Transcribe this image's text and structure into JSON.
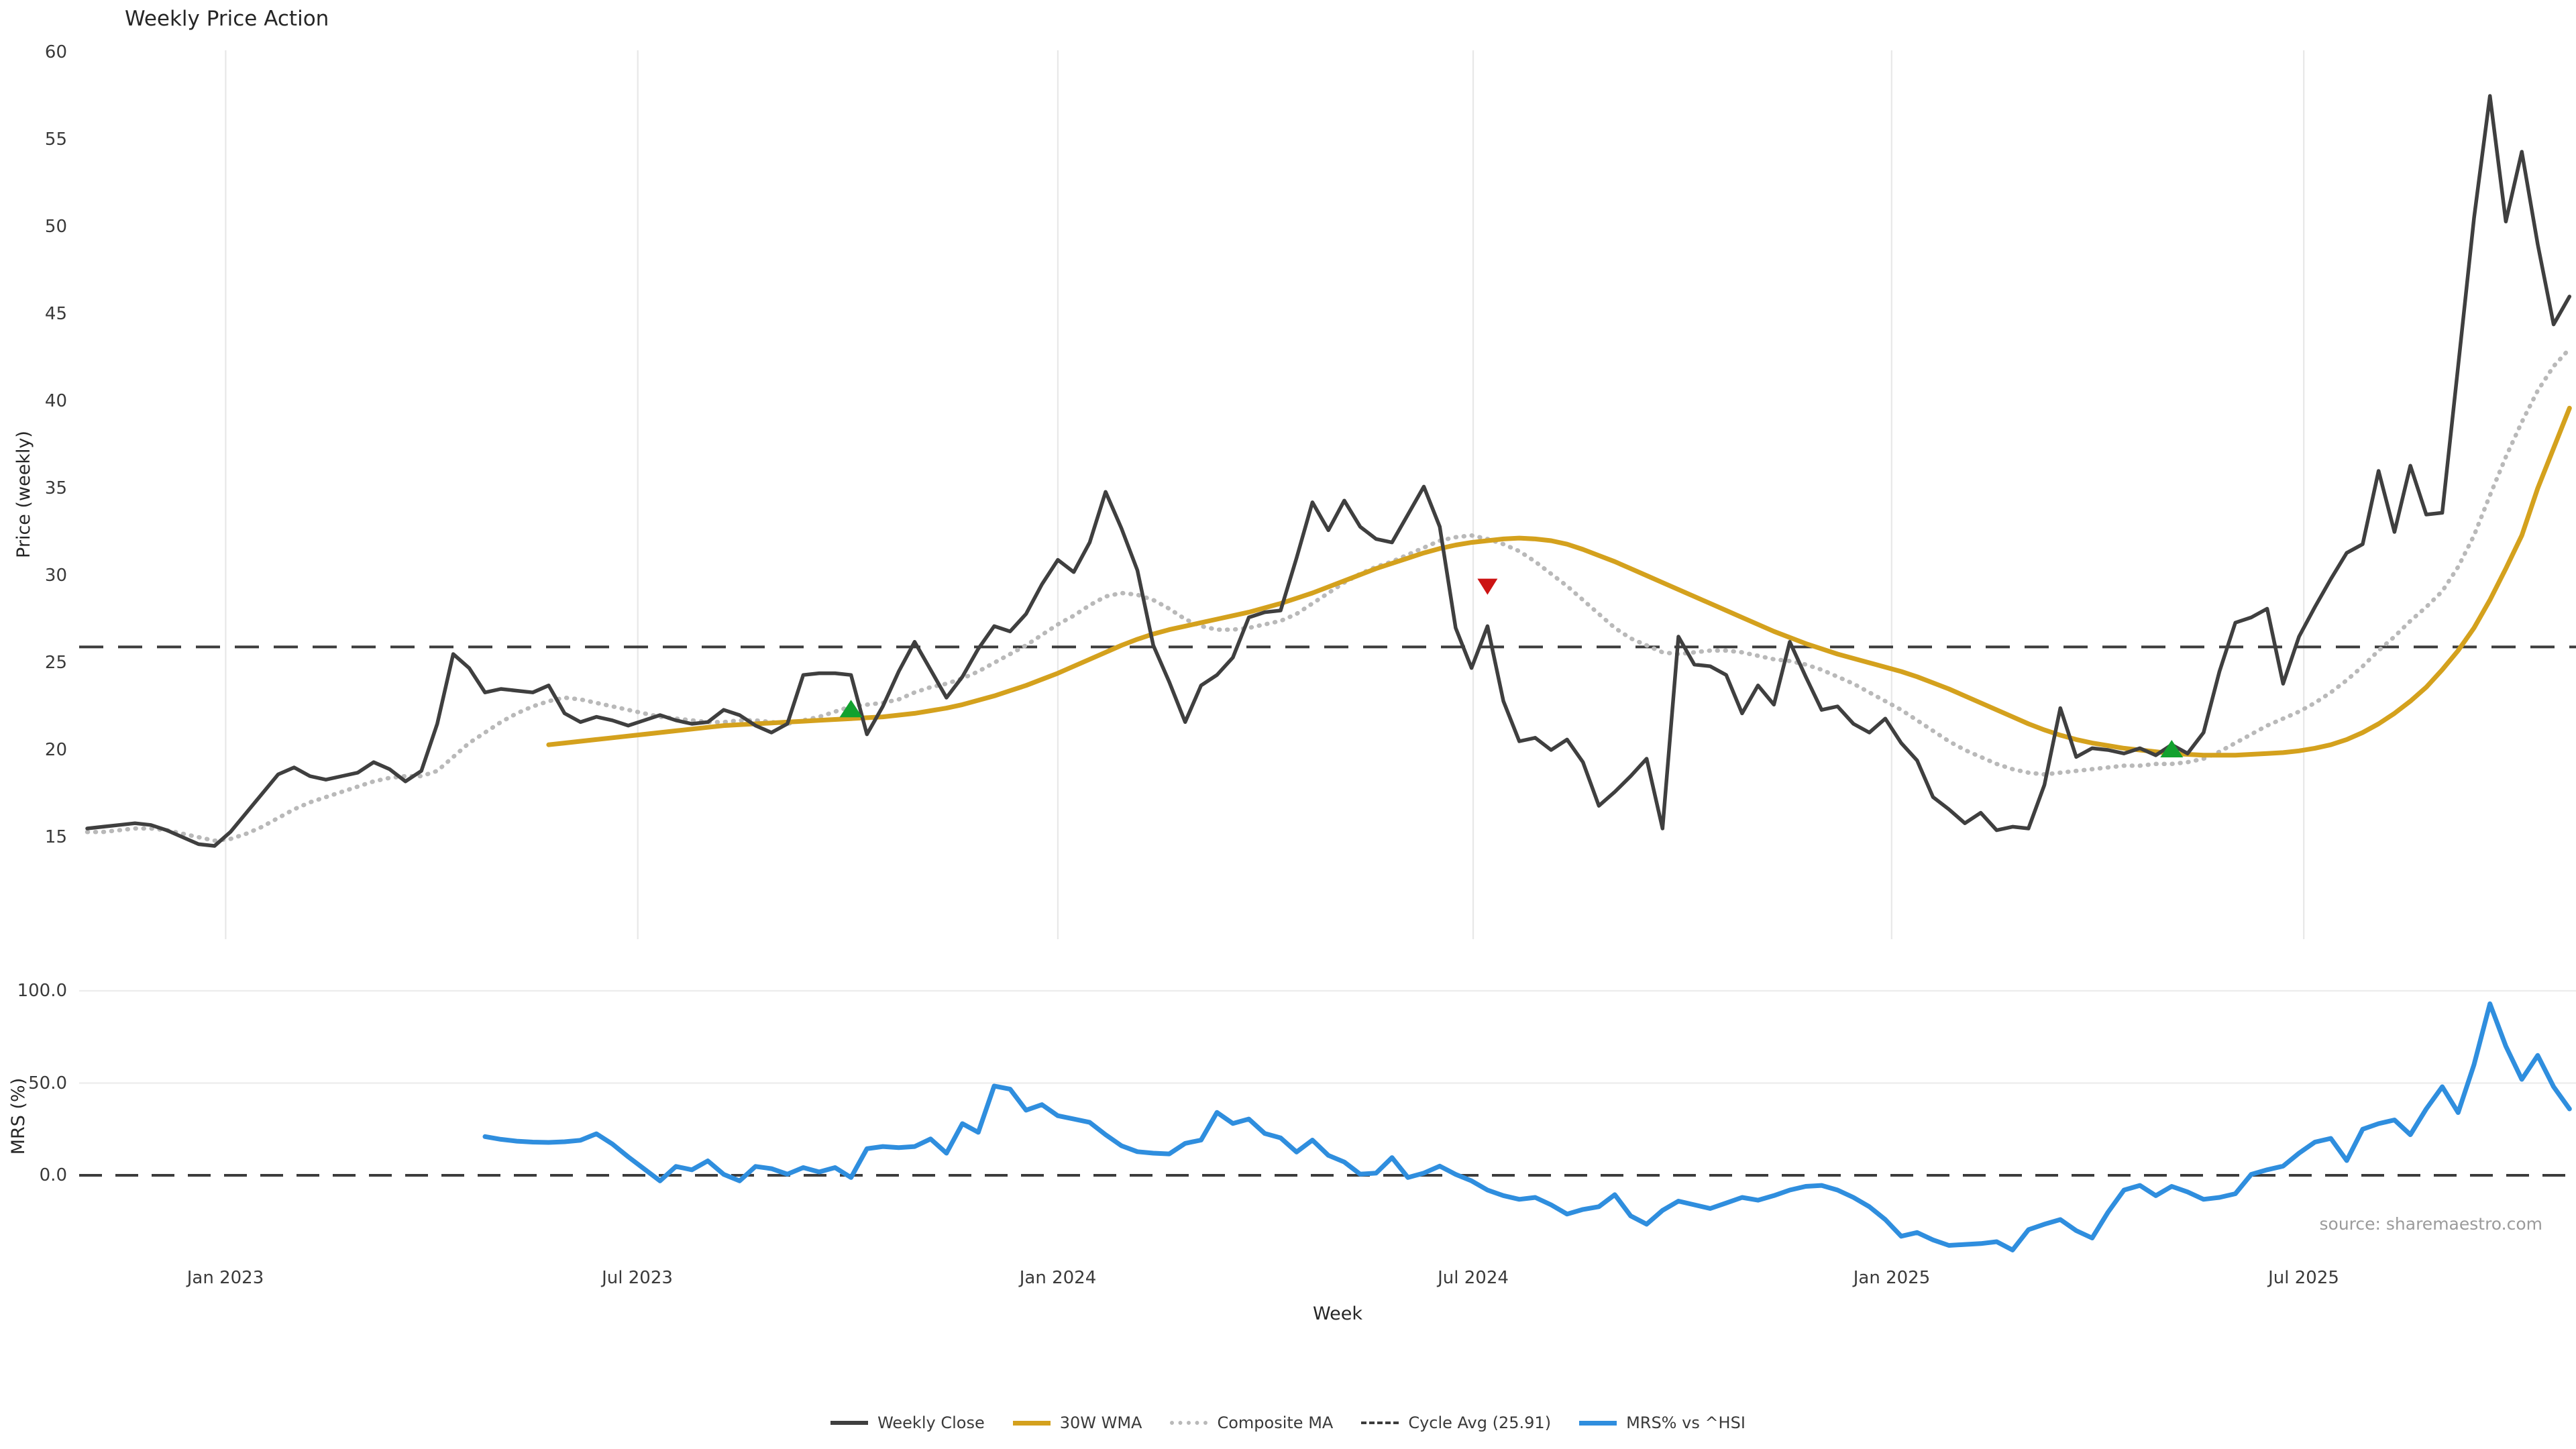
{
  "title": "Weekly Price Action",
  "source_text": "source: sharemaestro.com",
  "colors": {
    "weekly_close": "#3f3f3f",
    "wma_30w": "#d4a11d",
    "composite_ma": "#b9b9b9",
    "cycle_avg": "#3c3c3c",
    "mrs": "#2f8ede",
    "buy_marker": "#12a12e",
    "sell_marker": "#cc1414",
    "grid": "#e8e8e8"
  },
  "legend": [
    {
      "label": "Weekly Close",
      "style": "solid",
      "color": "#3f3f3f"
    },
    {
      "label": "30W WMA",
      "style": "solid",
      "color": "#d4a11d"
    },
    {
      "label": "Composite MA",
      "style": "dotted",
      "color": "#b9b9b9"
    },
    {
      "label": "Cycle Avg (25.91)",
      "style": "dashed",
      "color": "#3c3c3c"
    },
    {
      "label": "MRS% vs ^HSI",
      "style": "solid",
      "color": "#2f8ede"
    }
  ],
  "chart_data": [
    {
      "type": "line",
      "title": "Weekly Price Action",
      "xlabel": "Week",
      "ylabel": "Price (weekly)",
      "grid": "vertical-only",
      "legend_position": "bottom-center",
      "x_tick_labels": [
        "Jan 2023",
        "Jul 2023",
        "Jan 2024",
        "Jul 2024",
        "Jan 2025",
        "Jul 2025"
      ],
      "x_tick_weeks": [
        8.7,
        34.6,
        61,
        87.1,
        113.4,
        139.3
      ],
      "y_ticks": [
        60,
        55,
        50,
        45,
        40,
        35,
        30,
        25,
        20,
        15
      ],
      "ylim": [
        9.2,
        60.2
      ],
      "x_weeks_total": 157,
      "cycle_avg_value": 25.91,
      "series": [
        {
          "name": "Weekly Close",
          "style": "solid",
          "color": "#3f3f3f",
          "start_week": 0,
          "values": [
            15.5,
            15.6,
            15.7,
            15.8,
            15.7,
            15.4,
            15.0,
            14.6,
            14.5,
            15.3,
            16.4,
            17.5,
            18.6,
            19.0,
            18.5,
            18.3,
            18.5,
            18.7,
            19.3,
            18.9,
            18.2,
            18.8,
            21.5,
            25.5,
            24.7,
            23.3,
            23.5,
            23.4,
            23.3,
            23.7,
            22.1,
            21.6,
            21.9,
            21.7,
            21.4,
            21.7,
            22.0,
            21.7,
            21.5,
            21.6,
            22.3,
            22.0,
            21.4,
            21.0,
            21.5,
            24.3,
            24.4,
            24.4,
            24.3,
            20.9,
            22.5,
            24.5,
            26.2,
            24.6,
            23.0,
            24.2,
            25.8,
            27.1,
            26.8,
            27.8,
            29.5,
            30.9,
            30.2,
            31.9,
            34.8,
            32.7,
            30.3,
            26.0,
            23.9,
            21.6,
            23.7,
            24.3,
            25.3,
            27.6,
            27.9,
            28.0,
            31.0,
            34.2,
            32.6,
            34.3,
            32.8,
            32.1,
            31.9,
            33.5,
            35.1,
            32.8,
            27.0,
            24.7,
            27.1,
            22.8,
            20.5,
            20.7,
            20.0,
            20.6,
            19.3,
            16.8,
            17.6,
            18.5,
            19.5,
            15.5,
            26.5,
            24.9,
            24.8,
            24.3,
            22.1,
            23.7,
            22.6,
            26.2,
            24.2,
            22.3,
            22.5,
            21.5,
            21.0,
            21.8,
            20.4,
            19.4,
            17.3,
            16.6,
            15.8,
            16.4,
            15.4,
            15.6,
            15.5,
            18.0,
            22.4,
            19.6,
            20.1,
            20.0,
            19.8,
            20.1,
            19.7,
            20.3,
            19.8,
            21.0,
            24.5,
            27.3,
            27.6,
            28.1,
            23.8,
            26.5,
            28.2,
            29.8,
            31.3,
            31.8,
            36.0,
            32.5,
            36.3,
            33.5,
            33.6,
            42.0,
            50.5,
            57.5,
            50.3,
            54.3,
            49.0,
            44.4,
            46.0
          ]
        },
        {
          "name": "30W WMA",
          "style": "solid",
          "color": "#d4a11d",
          "start_week": 29,
          "values": [
            20.3,
            20.4,
            20.5,
            20.6,
            20.7,
            20.8,
            20.9,
            21.0,
            21.1,
            21.2,
            21.3,
            21.4,
            21.45,
            21.5,
            21.55,
            21.6,
            21.65,
            21.7,
            21.75,
            21.8,
            21.85,
            21.9,
            22.0,
            22.1,
            22.25,
            22.4,
            22.6,
            22.85,
            23.1,
            23.4,
            23.7,
            24.05,
            24.4,
            24.8,
            25.2,
            25.6,
            26.0,
            26.35,
            26.65,
            26.9,
            27.1,
            27.3,
            27.5,
            27.7,
            27.9,
            28.15,
            28.4,
            28.7,
            29.0,
            29.35,
            29.7,
            30.05,
            30.4,
            30.7,
            31.0,
            31.3,
            31.55,
            31.75,
            31.9,
            32.0,
            32.1,
            32.15,
            32.1,
            32.0,
            31.8,
            31.5,
            31.15,
            30.8,
            30.4,
            30.0,
            29.6,
            29.2,
            28.8,
            28.4,
            28.0,
            27.6,
            27.2,
            26.8,
            26.45,
            26.1,
            25.8,
            25.5,
            25.25,
            25.0,
            24.75,
            24.5,
            24.2,
            23.85,
            23.5,
            23.1,
            22.7,
            22.3,
            21.9,
            21.5,
            21.15,
            20.85,
            20.6,
            20.4,
            20.25,
            20.1,
            20.0,
            19.9,
            19.8,
            19.75,
            19.7,
            19.7,
            19.7,
            19.75,
            19.8,
            19.85,
            19.95,
            20.1,
            20.3,
            20.6,
            21.0,
            21.5,
            22.1,
            22.8,
            23.6,
            24.6,
            25.7,
            27.0,
            28.6,
            30.4,
            32.3,
            35.0,
            37.3,
            39.6
          ]
        },
        {
          "name": "Composite MA",
          "style": "dotted",
          "color": "#b9b9b9",
          "start_week": 0,
          "values": [
            15.3,
            15.3,
            15.4,
            15.5,
            15.5,
            15.4,
            15.2,
            15.0,
            14.8,
            14.9,
            15.2,
            15.6,
            16.1,
            16.6,
            17.0,
            17.3,
            17.6,
            17.9,
            18.2,
            18.4,
            18.5,
            18.5,
            18.8,
            19.6,
            20.4,
            21.0,
            21.6,
            22.1,
            22.5,
            22.8,
            23.0,
            22.9,
            22.7,
            22.5,
            22.3,
            22.1,
            21.9,
            21.8,
            21.7,
            21.6,
            21.6,
            21.7,
            21.7,
            21.6,
            21.5,
            21.7,
            21.9,
            22.2,
            22.5,
            22.6,
            22.7,
            22.9,
            23.3,
            23.6,
            23.8,
            24.1,
            24.5,
            25.0,
            25.5,
            26.0,
            26.6,
            27.2,
            27.7,
            28.3,
            28.8,
            29.0,
            28.9,
            28.6,
            28.1,
            27.5,
            27.1,
            26.9,
            26.9,
            27.0,
            27.2,
            27.4,
            27.8,
            28.4,
            29.0,
            29.6,
            30.1,
            30.5,
            30.8,
            31.2,
            31.6,
            32.0,
            32.2,
            32.3,
            32.1,
            31.8,
            31.4,
            30.8,
            30.1,
            29.4,
            28.6,
            27.8,
            27.0,
            26.4,
            26.0,
            25.6,
            25.5,
            25.6,
            25.7,
            25.7,
            25.6,
            25.4,
            25.2,
            25.1,
            24.9,
            24.6,
            24.2,
            23.8,
            23.3,
            22.8,
            22.3,
            21.7,
            21.1,
            20.5,
            20.0,
            19.6,
            19.2,
            18.9,
            18.7,
            18.6,
            18.7,
            18.8,
            18.9,
            19.0,
            19.1,
            19.1,
            19.2,
            19.2,
            19.3,
            19.5,
            19.9,
            20.4,
            20.9,
            21.4,
            21.8,
            22.2,
            22.7,
            23.3,
            24.0,
            24.8,
            25.7,
            26.5,
            27.4,
            28.2,
            29.1,
            30.5,
            32.3,
            34.6,
            36.8,
            38.8,
            40.6,
            42.0,
            43.0
          ]
        },
        {
          "name": "Cycle Avg (25.91)",
          "style": "dashed",
          "color": "#3c3c3c",
          "value": 25.91
        }
      ],
      "markers": [
        {
          "shape": "triangle-up",
          "meaning": "buy-signal",
          "color": "#12a12e",
          "week": 48,
          "value": 22.3
        },
        {
          "shape": "triangle-down",
          "meaning": "sell-signal",
          "color": "#cc1414",
          "week": 88,
          "value": 29.4
        },
        {
          "shape": "triangle-up",
          "meaning": "buy-signal",
          "color": "#12a12e",
          "week": 131,
          "value": 20.0
        }
      ]
    },
    {
      "type": "line",
      "ylabel": "MRS (%)",
      "grid": "horizontal-only",
      "y_tick_labels": [
        "100.0",
        "50.0",
        "0.0"
      ],
      "y_tick_values": [
        100,
        50,
        0
      ],
      "ylim": [
        -46,
        107
      ],
      "zero_line": "dashed",
      "series": [
        {
          "name": "MRS% vs ^HSI",
          "style": "solid",
          "color": "#2f8ede",
          "start_week": 25,
          "values": [
            21,
            19.5,
            18.5,
            18,
            17.8,
            18.2,
            19,
            22.5,
            17,
            10,
            3.5,
            -3,
            4.8,
            3,
            7.8,
            0.5,
            -3,
            4.8,
            3.6,
            0.6,
            4.2,
            1.8,
            4.2,
            -1.2,
            14.4,
            15.6,
            15,
            15.6,
            19.7,
            12,
            28,
            23.3,
            48.4,
            46.7,
            35.3,
            38.3,
            32.3,
            30.5,
            28.7,
            22,
            16,
            12.8,
            12.0,
            11.6,
            17.3,
            19.1,
            34.1,
            28.1,
            30.5,
            22.7,
            20.3,
            12.6,
            19.1,
            10.8,
            7.2,
            0.6,
            1.2,
            9.6,
            -1.2,
            1.2,
            5.0,
            0.5,
            -3,
            -8,
            -11,
            -13,
            -12,
            -16,
            -21,
            -18.5,
            -17,
            -10.5,
            -22,
            -26.5,
            -19,
            -14,
            -16,
            -18,
            -15,
            -12,
            -13.5,
            -11,
            -8,
            -6,
            -5.5,
            -8,
            -12,
            -17,
            -24,
            -33,
            -31,
            -35,
            -38,
            -37.5,
            -37,
            -36,
            -40.5,
            -29.5,
            -26.5,
            -24,
            -30,
            -34,
            -20,
            -8,
            -5.5,
            -11,
            -6,
            -9,
            -13,
            -12,
            -10,
            0.5,
            3,
            5,
            12,
            18,
            20,
            8,
            25,
            28,
            30,
            22,
            36,
            48,
            34,
            60,
            93,
            70,
            52,
            65,
            48,
            36
          ]
        }
      ]
    }
  ]
}
